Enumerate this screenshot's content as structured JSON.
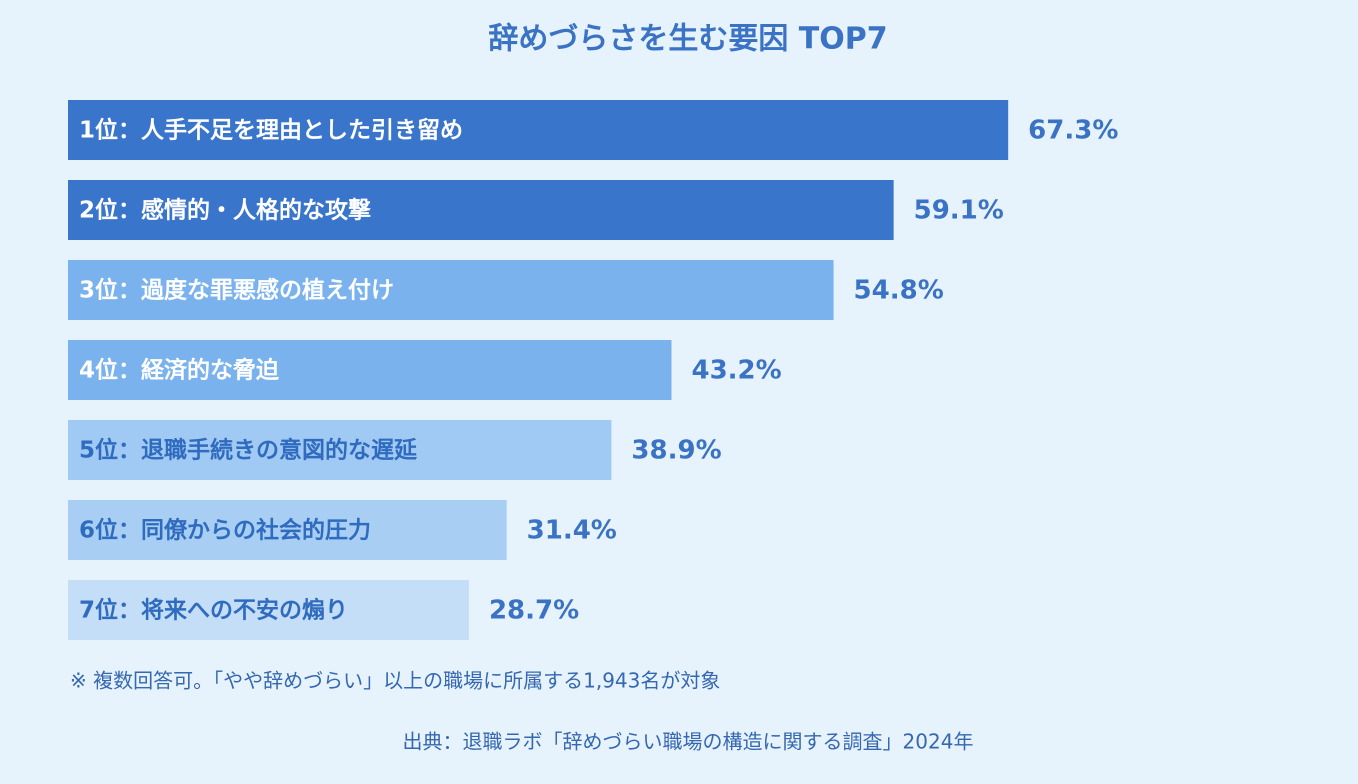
{
  "chart_data": {
    "type": "bar",
    "orientation": "horizontal",
    "title": "辞めづらさを生む要因 TOP7",
    "categories": [
      "1位：人手不足を理由とした引き留め",
      "2位：感情的・人格的な攻撃",
      "3位：過度な罪悪感の植え付け",
      "4位：経済的な脅迫",
      "5位：退職手続きの意図的な遅延",
      "6位：同僚からの社会的圧力",
      "7位：将来への不安の煽り"
    ],
    "values": [
      67.3,
      59.1,
      54.8,
      43.2,
      38.9,
      31.4,
      28.7
    ],
    "value_labels": [
      "67.3%",
      "59.1%",
      "54.8%",
      "43.2%",
      "38.9%",
      "31.4%",
      "28.7%"
    ],
    "colors": [
      "#3a75cc",
      "#3a75cc",
      "#7ab2ed",
      "#7ab2ed",
      "#a0c9f3",
      "#a8cef4",
      "#c4def8"
    ],
    "note": "※ 複数回答可。「やや辞めづらい」以上の職場に所属する1,943名が対象",
    "source": "出典：退職ラボ「辞めづらい職場の構造に関する調査」2024年"
  }
}
